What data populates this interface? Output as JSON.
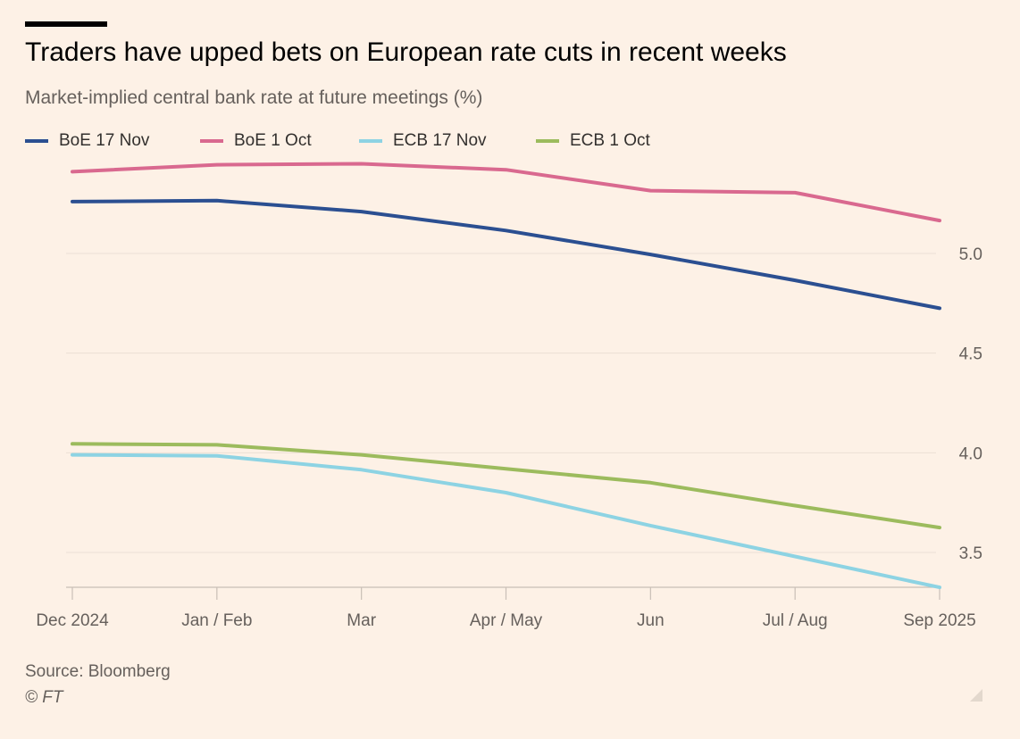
{
  "header": {
    "title": "Traders have upped bets on European rate cuts in recent weeks",
    "subtitle": "Market-implied central bank rate at future meetings (%)"
  },
  "legend": [
    {
      "label": "BoE 17 Nov",
      "color": "#2b4f91"
    },
    {
      "label": "BoE 1 Oct",
      "color": "#d9698f"
    },
    {
      "label": "ECB 17 Nov",
      "color": "#8dd3e3"
    },
    {
      "label": "ECB 1 Oct",
      "color": "#9cbb5d"
    }
  ],
  "footer": {
    "source": "Source: Bloomberg",
    "credit": "© FT"
  },
  "chart_data": {
    "type": "line",
    "categories": [
      "Dec 2024",
      "Jan / Feb",
      "Mar",
      "Apr / May",
      "Jun",
      "Jul / Aug",
      "Sep 2025"
    ],
    "series": [
      {
        "name": "BoE 17 Nov",
        "color": "#2b4f91",
        "values": [
          5.26,
          5.265,
          5.21,
          5.115,
          4.995,
          4.865,
          4.725
        ]
      },
      {
        "name": "BoE 1 Oct",
        "color": "#d9698f",
        "values": [
          5.41,
          5.445,
          5.45,
          5.42,
          5.315,
          5.305,
          5.165
        ]
      },
      {
        "name": "ECB 17 Nov",
        "color": "#8dd3e3",
        "values": [
          3.99,
          3.985,
          3.915,
          3.8,
          3.635,
          3.48,
          3.325
        ]
      },
      {
        "name": "ECB 1 Oct",
        "color": "#9cbb5d",
        "values": [
          4.045,
          4.04,
          3.99,
          3.92,
          3.85,
          3.735,
          3.625
        ]
      }
    ],
    "yticks": [
      "5.0",
      "4.5",
      "4.0",
      "3.5"
    ],
    "ylim": [
      3.325,
      5.5
    ],
    "xlabel": "",
    "ylabel": "",
    "grid": true,
    "legend_position": "top-left"
  }
}
